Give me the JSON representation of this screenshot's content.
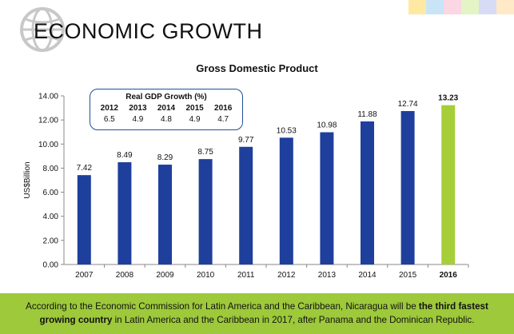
{
  "header": {
    "title": "ECONOMIC GROWTH"
  },
  "accent_colors": [
    "#fde9a1",
    "#c9e4f7",
    "#fbd6e3",
    "#e4f4c4",
    "#d8dbf5",
    "#ffe9c7"
  ],
  "inset": {
    "title": "Real GDP Growth (%)",
    "years": [
      "2012",
      "2013",
      "2014",
      "2015",
      "2016"
    ],
    "values": [
      "6.5",
      "4.9",
      "4.8",
      "4.9",
      "4.7"
    ]
  },
  "footer": {
    "part1": "According to the Economic Commission for Latin America and the Caribbean, Nicaragua will be ",
    "bold1": "the third fastest",
    "bold2": "growing country",
    "part2": " in Latin America and the Caribbean in 2017, after Panama and the Dominican Republic."
  },
  "chart_data": {
    "type": "bar",
    "title": "Gross Domestic Product",
    "ylabel": "US$Billion",
    "xlabel": "",
    "ylim": [
      0,
      14
    ],
    "yticks": [
      "0.00",
      "2.00",
      "4.00",
      "6.00",
      "8.00",
      "10.00",
      "12.00",
      "14.00"
    ],
    "categories": [
      "2007",
      "2008",
      "2009",
      "2010",
      "2011",
      "2012",
      "2013",
      "2014",
      "2015",
      "2016"
    ],
    "values": [
      7.42,
      8.49,
      8.29,
      8.75,
      9.77,
      10.53,
      10.98,
      11.88,
      12.74,
      13.23
    ],
    "value_labels": [
      "7.42",
      "8.49",
      "8.29",
      "8.75",
      "9.77",
      "10.53",
      "10.98",
      "11.88",
      "12.74",
      "13.23"
    ],
    "colors": {
      "default": "#1f3f9c",
      "highlight": "#a6ce39"
    },
    "highlight_index": 9
  }
}
